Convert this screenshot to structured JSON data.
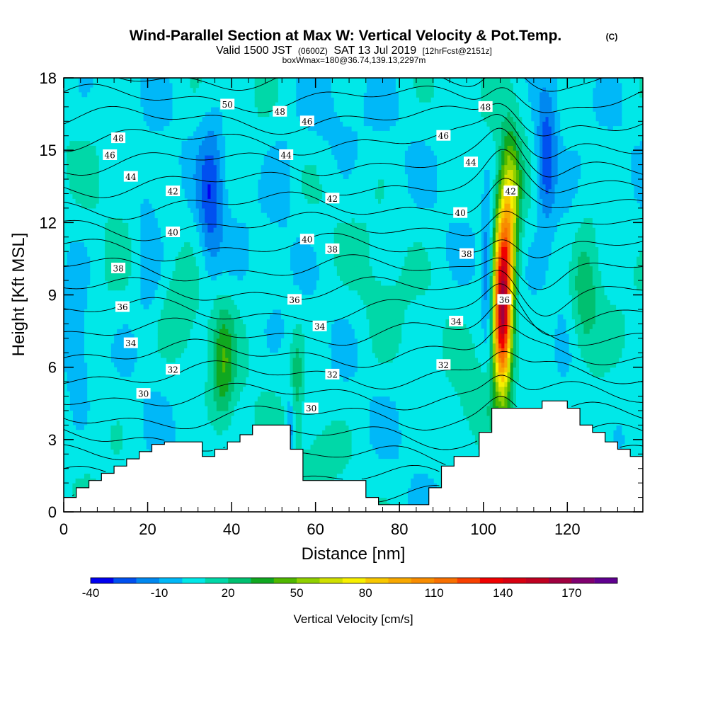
{
  "header": {
    "title_main": "Wind-Parallel Section at Max W: Vertical Velocity & Pot.Temp.",
    "title_mark": "(C)",
    "valid_a": "Valid 1500 JST",
    "valid_b": "(0600Z)",
    "valid_c": "SAT 13 Jul 2019",
    "valid_d": "[12hrFcst@2151z]",
    "box_line": "boxWmax=180@36.74,139.13,2297m"
  },
  "chart_data": {
    "type": "heatmap",
    "xlabel": "Distance [nm]",
    "ylabel": "Height [Kft MSL]",
    "xlim": [
      0,
      138
    ],
    "ylim": [
      0,
      18
    ],
    "x_ticks": [
      0,
      20,
      40,
      60,
      80,
      100,
      120
    ],
    "y_ticks": [
      0,
      3,
      6,
      9,
      12,
      15,
      18
    ],
    "colorbar": {
      "label": "Vertical Velocity [cm/s]",
      "tick_labels": [
        "-40",
        "-10",
        "20",
        "50",
        "80",
        "110",
        "140",
        "170"
      ],
      "tick_values": [
        -40,
        -10,
        20,
        50,
        80,
        110,
        140,
        170
      ],
      "levels": [
        -40,
        -30,
        -20,
        -10,
        0,
        10,
        20,
        30,
        40,
        50,
        60,
        70,
        80,
        90,
        100,
        110,
        120,
        130,
        140,
        150,
        160,
        170,
        180,
        190
      ],
      "colors": [
        "#0000f0",
        "#0050f0",
        "#0088f0",
        "#00b8f8",
        "#00e8e8",
        "#00d8a8",
        "#00c070",
        "#10a820",
        "#50b800",
        "#90d000",
        "#d0e000",
        "#f8f000",
        "#f8c800",
        "#f8a800",
        "#f88c00",
        "#f87000",
        "#f84000",
        "#f00000",
        "#d80010",
        "#c00020",
        "#a00040",
        "#800070",
        "#600090"
      ]
    },
    "background_value": 5,
    "updrafts": [
      {
        "x": 104.5,
        "y": 8,
        "sx": 2.2,
        "sy": 3,
        "amp": 150
      },
      {
        "x": 105.5,
        "y": 11.2,
        "sx": 2.4,
        "sy": 2.6,
        "amp": 70
      },
      {
        "x": 106.5,
        "y": 13.8,
        "sx": 2.5,
        "sy": 2.2,
        "amp": 40
      },
      {
        "x": 38,
        "y": 6,
        "sx": 2.8,
        "sy": 2.5,
        "amp": 30
      },
      {
        "x": 55.5,
        "y": 5.5,
        "sx": 1.6,
        "sy": 2.2,
        "amp": 20
      },
      {
        "x": 124,
        "y": 8.5,
        "sx": 3.5,
        "sy": 2.5,
        "amp": 22
      },
      {
        "x": 128,
        "y": 4,
        "sx": 4,
        "sy": 1.8,
        "amp": 10
      },
      {
        "x": 98,
        "y": 4.5,
        "sx": 4,
        "sy": 1.5,
        "amp": 10
      },
      {
        "x": 62,
        "y": 2.5,
        "sx": 5,
        "sy": 1.2,
        "amp": 10
      },
      {
        "x": 28,
        "y": 8,
        "sx": 4,
        "sy": 2,
        "amp": 10
      },
      {
        "x": 10,
        "y": 8.5,
        "sx": 5,
        "sy": 3,
        "amp": 5
      },
      {
        "x": 75,
        "y": 9,
        "sx": 6,
        "sy": 3,
        "amp": 5
      }
    ],
    "downdrafts": [
      {
        "x": 35,
        "y": 13,
        "sx": 3,
        "sy": 3,
        "amp": 30
      },
      {
        "x": 20,
        "y": 11,
        "sx": 3,
        "sy": 3,
        "amp": 15
      },
      {
        "x": 3,
        "y": 6.5,
        "sx": 3,
        "sy": 2.5,
        "amp": 15
      },
      {
        "x": 101,
        "y": 10,
        "sx": 1.2,
        "sy": 3,
        "amp": 25
      },
      {
        "x": 115,
        "y": 14.5,
        "sx": 2.5,
        "sy": 2.5,
        "amp": 40
      },
      {
        "x": 54,
        "y": 3.5,
        "sx": 1,
        "sy": 1.5,
        "amp": 25
      },
      {
        "x": 120,
        "y": 11,
        "sx": 3,
        "sy": 3,
        "amp": 10
      },
      {
        "x": 52,
        "y": 14,
        "sx": 4,
        "sy": 3,
        "amp": 8
      },
      {
        "x": 62,
        "y": 16,
        "sx": 8,
        "sy": 2,
        "amp": 8
      }
    ],
    "terrain": {
      "x": [
        0,
        3,
        6,
        9,
        12,
        15,
        18,
        21,
        24,
        27,
        30,
        33,
        36,
        39,
        42,
        45,
        48,
        51,
        54,
        57,
        60,
        63,
        66,
        69,
        72,
        75,
        78,
        81,
        84,
        87,
        90,
        93,
        96,
        99,
        102,
        105,
        108,
        111,
        114,
        117,
        120,
        123,
        126,
        129,
        132,
        135,
        138
      ],
      "height": [
        0.6,
        1,
        1.3,
        1.6,
        1.9,
        2.2,
        2.5,
        2.8,
        2.9,
        2.9,
        2.9,
        2.3,
        2.6,
        2.9,
        3.2,
        3.6,
        3.6,
        3.6,
        2.6,
        1.3,
        1.3,
        1.3,
        1.3,
        1.3,
        0.6,
        0.3,
        0.3,
        0.3,
        0.3,
        1,
        1.9,
        2.3,
        2.3,
        3.3,
        4.3,
        4.3,
        4.3,
        4.3,
        4.6,
        4.6,
        4.3,
        3.6,
        3.3,
        2.9,
        2.6,
        2.3,
        2.3
      ]
    },
    "theta_levels": [
      30,
      31,
      32,
      33,
      34,
      35,
      36,
      37,
      38,
      39,
      40,
      41,
      42,
      43,
      44,
      45,
      46,
      47,
      48,
      49,
      50,
      51
    ],
    "theta_contour_labels": [
      {
        "text": "50",
        "x": 39,
        "y": 16.9
      },
      {
        "text": "48",
        "x": 13,
        "y": 15.5
      },
      {
        "text": "46",
        "x": 11,
        "y": 14.8
      },
      {
        "text": "44",
        "x": 16,
        "y": 13.9
      },
      {
        "text": "42",
        "x": 26,
        "y": 13.3
      },
      {
        "text": "40",
        "x": 26,
        "y": 11.6
      },
      {
        "text": "38",
        "x": 13,
        "y": 10.1
      },
      {
        "text": "36",
        "x": 14,
        "y": 8.5
      },
      {
        "text": "34",
        "x": 16,
        "y": 7
      },
      {
        "text": "32",
        "x": 26,
        "y": 5.9
      },
      {
        "text": "30",
        "x": 19,
        "y": 4.9
      },
      {
        "text": "48",
        "x": 51.5,
        "y": 16.6
      },
      {
        "text": "46",
        "x": 58,
        "y": 16.2
      },
      {
        "text": "44",
        "x": 53,
        "y": 14.8
      },
      {
        "text": "42",
        "x": 64,
        "y": 13
      },
      {
        "text": "40",
        "x": 58,
        "y": 11.3
      },
      {
        "text": "38",
        "x": 64,
        "y": 10.9
      },
      {
        "text": "36",
        "x": 55,
        "y": 8.8
      },
      {
        "text": "34",
        "x": 61,
        "y": 7.7
      },
      {
        "text": "32",
        "x": 64,
        "y": 5.7
      },
      {
        "text": "30",
        "x": 59,
        "y": 4.3
      },
      {
        "text": "48",
        "x": 100.5,
        "y": 16.8
      },
      {
        "text": "46",
        "x": 90.5,
        "y": 15.6
      },
      {
        "text": "44",
        "x": 97,
        "y": 14.5
      },
      {
        "text": "42",
        "x": 106.5,
        "y": 13.3
      },
      {
        "text": "40",
        "x": 94.5,
        "y": 12.4
      },
      {
        "text": "38",
        "x": 96,
        "y": 10.7
      },
      {
        "text": "36",
        "x": 105,
        "y": 8.8
      },
      {
        "text": "34",
        "x": 93.5,
        "y": 7.9
      },
      {
        "text": "32",
        "x": 90.5,
        "y": 6.1
      }
    ]
  }
}
